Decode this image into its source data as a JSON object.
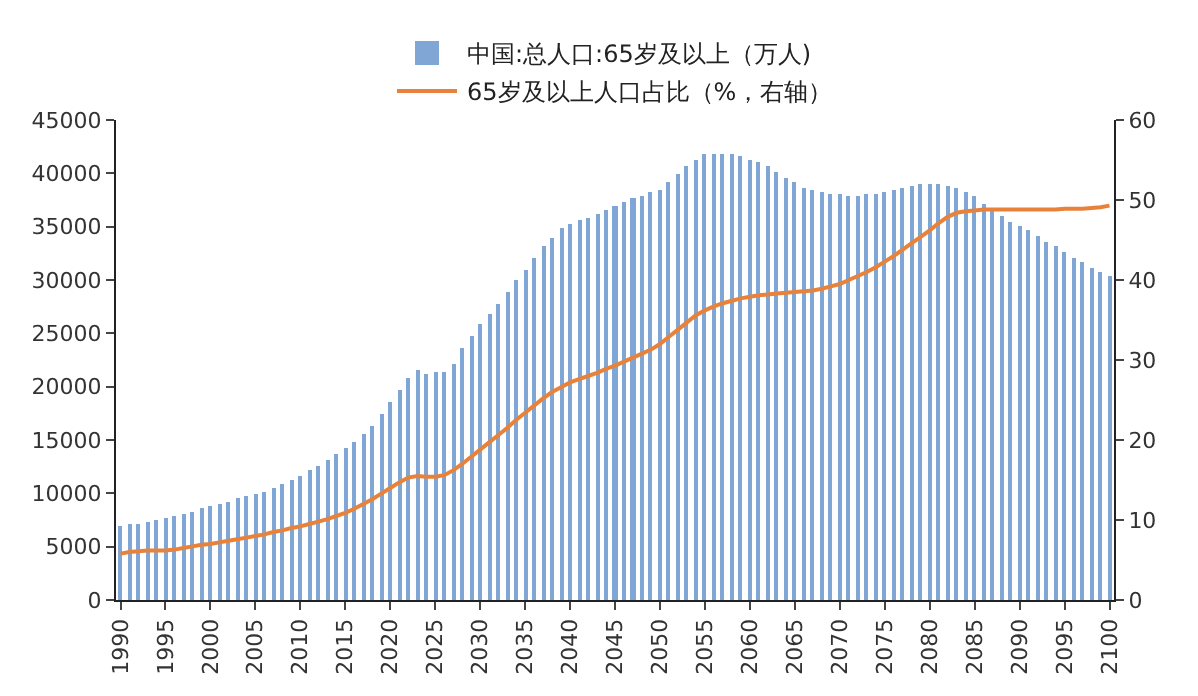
{
  "chart_data": {
    "type": "bar",
    "legend": "top",
    "x": [
      1990,
      1991,
      1992,
      1993,
      1994,
      1995,
      1996,
      1997,
      1998,
      1999,
      2000,
      2001,
      2002,
      2003,
      2004,
      2005,
      2006,
      2007,
      2008,
      2009,
      2010,
      2011,
      2012,
      2013,
      2014,
      2015,
      2016,
      2017,
      2018,
      2019,
      2020,
      2021,
      2022,
      2023,
      2024,
      2025,
      2026,
      2027,
      2028,
      2029,
      2030,
      2031,
      2032,
      2033,
      2034,
      2035,
      2036,
      2037,
      2038,
      2039,
      2040,
      2041,
      2042,
      2043,
      2044,
      2045,
      2046,
      2047,
      2048,
      2049,
      2050,
      2051,
      2052,
      2053,
      2054,
      2055,
      2056,
      2057,
      2058,
      2059,
      2060,
      2061,
      2062,
      2063,
      2064,
      2065,
      2066,
      2067,
      2068,
      2069,
      2070,
      2071,
      2072,
      2073,
      2074,
      2075,
      2076,
      2077,
      2078,
      2079,
      2080,
      2081,
      2082,
      2083,
      2084,
      2085,
      2086,
      2087,
      2088,
      2089,
      2090,
      2091,
      2092,
      2093,
      2094,
      2095,
      2096,
      2097,
      2098,
      2099,
      2100
    ],
    "xlim": [
      1989.5,
      2100.5
    ],
    "xticks": [
      1990,
      1995,
      2000,
      2005,
      2010,
      2015,
      2020,
      2025,
      2030,
      2035,
      2040,
      2045,
      2050,
      2055,
      2060,
      2065,
      2070,
      2075,
      2080,
      2085,
      2090,
      2095,
      2100
    ],
    "ylim": [
      0,
      45000
    ],
    "yticks": [
      0,
      5000,
      10000,
      15000,
      20000,
      25000,
      30000,
      35000,
      40000,
      45000
    ],
    "y2lim": [
      0,
      60
    ],
    "y2ticks": [
      0,
      10,
      20,
      30,
      40,
      50,
      60
    ],
    "series": [
      {
        "name": "中国:总人口:65岁及以上（万人)",
        "color": "#7fa6d4",
        "values": [
          6900,
          7100,
          7200,
          7400,
          7500,
          7600,
          7800,
          8000,
          8300,
          8600,
          8800,
          9000,
          9200,
          9500,
          9700,
          9900,
          10200,
          10500,
          10800,
          11200,
          11700,
          12100,
          12600,
          13100,
          13600,
          14200,
          14800,
          15500,
          16400,
          17400,
          18600,
          19700,
          20900,
          21600,
          21200,
          21400,
          21300,
          22100,
          23600,
          24700,
          25800,
          26800,
          27700,
          28900,
          30000,
          31000,
          32100,
          33200,
          34000,
          34800,
          35300,
          35600,
          35800,
          36200,
          36600,
          36900,
          37300,
          37600,
          37900,
          38200,
          38500,
          39100,
          39900,
          40600,
          41300,
          41800,
          41900,
          41900,
          41800,
          41600,
          41300,
          41000,
          40600,
          40100,
          39600,
          39100,
          38700,
          38400,
          38200,
          38000,
          38000,
          37900,
          37900,
          38000,
          38100,
          38300,
          38500,
          38700,
          38900,
          39000,
          39000,
          39000,
          38900,
          38700,
          38300,
          37800,
          37200,
          36600,
          36000,
          35500,
          35100,
          34600,
          34100,
          33600,
          33100,
          32600,
          32100,
          31600,
          31200,
          30800,
          30400
        ]
      },
      {
        "name": "65岁及以上人口占比（%，右轴）",
        "type": "line",
        "axis": "y2",
        "color": "#e8823a",
        "values": [
          5.8,
          6.0,
          6.1,
          6.2,
          6.2,
          6.2,
          6.3,
          6.5,
          6.7,
          6.9,
          7.0,
          7.2,
          7.4,
          7.6,
          7.8,
          8.0,
          8.2,
          8.5,
          8.7,
          9.0,
          9.2,
          9.5,
          9.8,
          10.1,
          10.5,
          10.9,
          11.4,
          12.0,
          12.6,
          13.3,
          14.0,
          14.7,
          15.3,
          15.5,
          15.4,
          15.4,
          15.6,
          16.2,
          17.0,
          17.9,
          18.8,
          19.7,
          20.6,
          21.5,
          22.5,
          23.4,
          24.3,
          25.2,
          26.0,
          26.6,
          27.2,
          27.6,
          28.0,
          28.4,
          28.9,
          29.3,
          29.8,
          30.3,
          30.8,
          31.3,
          32.0,
          32.9,
          33.8,
          34.7,
          35.6,
          36.2,
          36.7,
          37.1,
          37.4,
          37.7,
          37.9,
          38.1,
          38.2,
          38.3,
          38.4,
          38.5,
          38.6,
          38.7,
          38.9,
          39.2,
          39.5,
          40.0,
          40.5,
          41.0,
          41.6,
          42.3,
          43.0,
          43.8,
          44.6,
          45.4,
          46.2,
          47.1,
          47.9,
          48.4,
          48.6,
          48.7,
          48.8,
          48.8,
          48.8,
          48.8,
          48.8,
          48.8,
          48.8,
          48.8,
          48.8,
          48.9,
          48.9,
          48.9,
          49.0,
          49.1,
          49.3
        ]
      }
    ]
  }
}
